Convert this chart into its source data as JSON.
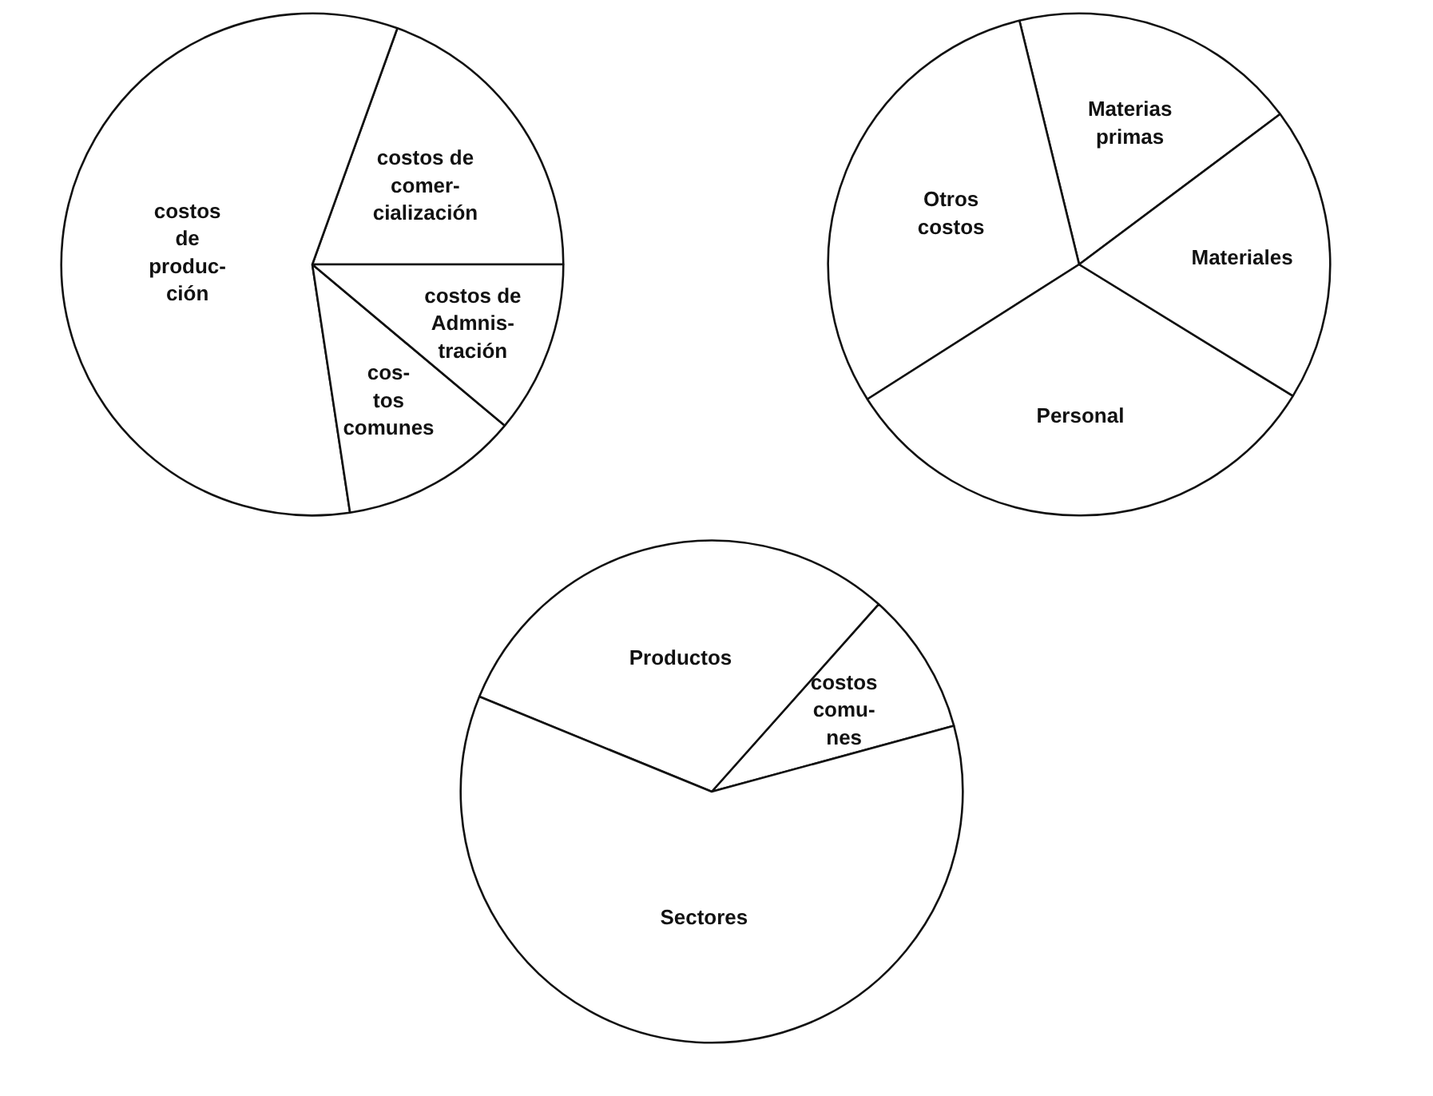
{
  "chart_data": [
    {
      "type": "pie",
      "categories": [
        "costos de\ncomer-\ncialización",
        "costos\nde\nproduc-\nción",
        "cos-\ntos\ncomunes",
        "costos de\nAdmnis-\ntración"
      ],
      "values": [
        19.5,
        57.9,
        11.5,
        11.1
      ],
      "colors": [
        "#ffffff",
        "#ffffff",
        "#ffffff",
        "#ffffff"
      ]
    },
    {
      "type": "pie",
      "categories": [
        "Materias\nprimas",
        "Otros\ncostos",
        "Personal",
        "Materiales"
      ],
      "values": [
        18.6,
        30.2,
        32.2,
        19.0
      ],
      "colors": [
        "#ffffff",
        "#ffffff",
        "#ffffff",
        "#ffffff"
      ]
    },
    {
      "type": "pie",
      "categories": [
        "costos\ncomu-\nnes",
        "Productos",
        "Sectores"
      ],
      "values": [
        9.2,
        30.4,
        60.4
      ],
      "colors": [
        "#ffffff",
        "#ffffff",
        "#ffffff"
      ]
    }
  ]
}
